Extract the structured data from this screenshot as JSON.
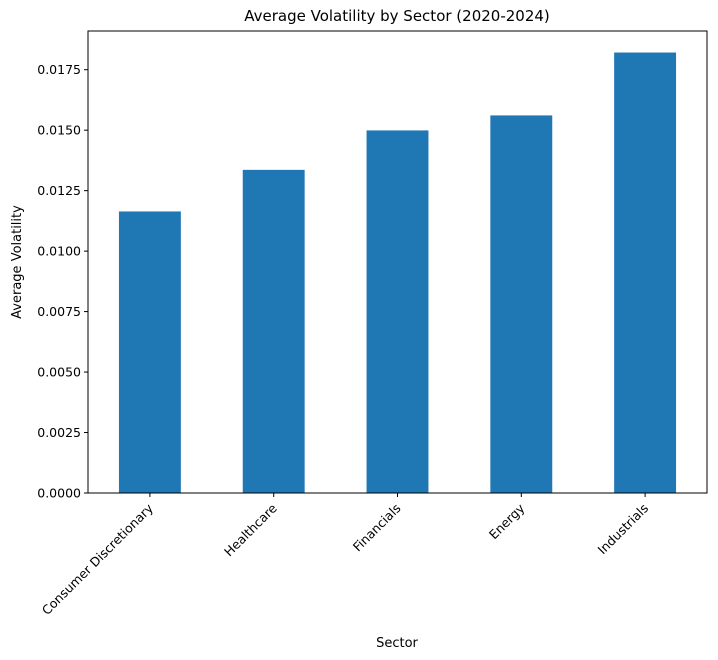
{
  "chart_data": {
    "type": "bar",
    "title": "Average Volatility by Sector (2020-2024)",
    "xlabel": "Sector",
    "ylabel": "Average Volatility",
    "categories": [
      "Consumer Discretionary",
      "Healthcare",
      "Financials",
      "Energy",
      "Industrials"
    ],
    "values": [
      0.01164,
      0.01336,
      0.01499,
      0.01561,
      0.01821
    ],
    "ylim": [
      0,
      0.0191
    ],
    "yticks": [
      "0.0000",
      "0.0025",
      "0.0050",
      "0.0075",
      "0.0100",
      "0.0125",
      "0.0150",
      "0.0175"
    ],
    "grid": false,
    "legend": false,
    "bar_color": "#1f77b4"
  }
}
